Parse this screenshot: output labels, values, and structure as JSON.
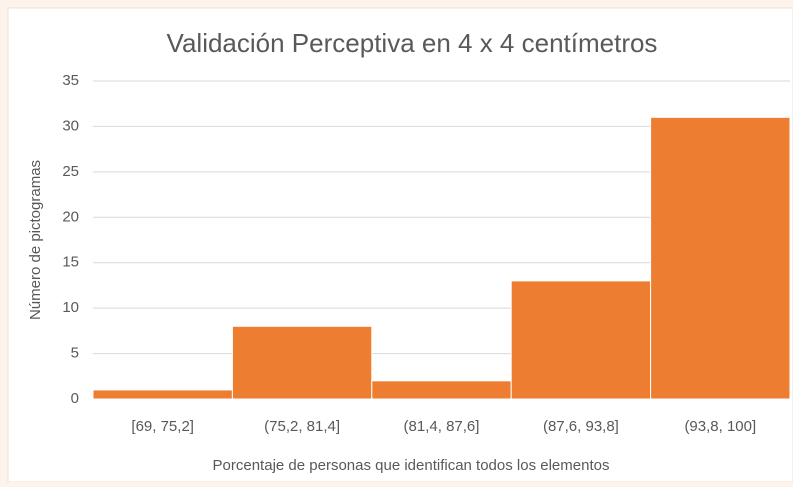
{
  "chart_data": {
    "type": "bar",
    "title": "Validación Perceptiva en 4 x 4 centímetros",
    "xlabel": "Porcentaje de personas que identifican todos los elementos",
    "ylabel": "Número de pictogramas",
    "categories": [
      "[69, 75,2]",
      "(75,2, 81,4]",
      "(81,4, 87,6]",
      "(87,6, 93,8]",
      "(93,8, 100]"
    ],
    "values": [
      1,
      8,
      2,
      13,
      31
    ],
    "color": "#ed7d31",
    "ylim": [
      0,
      35
    ],
    "yticks": [
      0,
      5,
      10,
      15,
      20,
      25,
      30,
      35
    ],
    "grid": true
  }
}
